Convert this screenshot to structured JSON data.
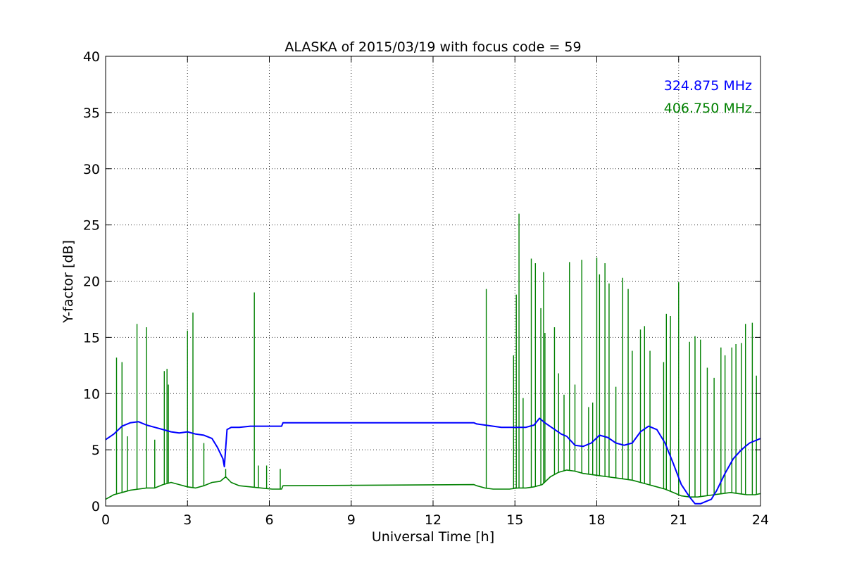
{
  "chart_data": {
    "type": "line",
    "title": "ALASKA of 2015/03/19 with focus code = 59",
    "xlabel": "Universal Time [h]",
    "ylabel": "Y-factor [dB]",
    "xlim": [
      0,
      24
    ],
    "ylim": [
      0,
      40
    ],
    "x_ticks": [
      0,
      3,
      6,
      9,
      12,
      15,
      18,
      21,
      24
    ],
    "y_ticks": [
      0,
      5,
      10,
      15,
      20,
      25,
      30,
      35,
      40
    ],
    "grid": true,
    "legend_placement": "top-right",
    "series": [
      {
        "name": "324.875 MHz",
        "color": "#0000ff",
        "x": [
          0,
          0.3,
          0.6,
          0.9,
          1.2,
          1.5,
          1.8,
          2.1,
          2.4,
          2.7,
          3.0,
          3.3,
          3.6,
          3.9,
          4.1,
          4.3,
          4.35,
          4.45,
          4.6,
          4.9,
          5.3,
          5.7,
          6.1,
          6.45,
          6.5,
          13.5,
          13.6,
          13.9,
          14.2,
          14.5,
          14.8,
          15.1,
          15.4,
          15.7,
          15.9,
          16.1,
          16.4,
          16.7,
          16.9,
          17.2,
          17.5,
          17.8,
          18.1,
          18.4,
          18.7,
          19.0,
          19.3,
          19.6,
          19.9,
          20.2,
          20.5,
          20.8,
          21.1,
          21.4,
          21.6,
          21.8,
          22.0,
          22.2,
          22.4,
          22.7,
          23.0,
          23.3,
          23.6,
          24.0
        ],
        "values": [
          5.9,
          6.4,
          7.1,
          7.4,
          7.5,
          7.2,
          7.0,
          6.8,
          6.6,
          6.5,
          6.6,
          6.4,
          6.3,
          6.0,
          5.2,
          4.2,
          3.5,
          6.8,
          7.0,
          7.0,
          7.1,
          7.1,
          7.1,
          7.1,
          7.4,
          7.4,
          7.3,
          7.2,
          7.1,
          7.0,
          7.0,
          7.0,
          7.0,
          7.2,
          7.8,
          7.4,
          6.9,
          6.4,
          6.2,
          5.4,
          5.3,
          5.6,
          6.3,
          6.1,
          5.6,
          5.4,
          5.6,
          6.6,
          7.1,
          6.8,
          5.6,
          3.8,
          1.9,
          0.8,
          0.2,
          0.2,
          0.4,
          0.6,
          1.4,
          2.9,
          4.2,
          5.0,
          5.6,
          6.0
        ]
      },
      {
        "name": "406.750 MHz",
        "color": "#008000",
        "x": [
          0,
          0.3,
          0.6,
          0.9,
          1.2,
          1.5,
          1.8,
          2.1,
          2.4,
          2.7,
          3.0,
          3.3,
          3.6,
          3.9,
          4.2,
          4.4,
          4.6,
          4.9,
          5.3,
          5.7,
          6.1,
          6.45,
          6.5,
          13.5,
          13.6,
          13.9,
          14.2,
          14.5,
          14.8,
          15.1,
          15.4,
          15.7,
          16.0,
          16.3,
          16.6,
          16.9,
          17.2,
          17.5,
          17.8,
          18.1,
          18.4,
          18.7,
          19.0,
          19.3,
          19.6,
          19.9,
          20.2,
          20.5,
          20.8,
          21.1,
          21.4,
          21.7,
          22.0,
          22.3,
          22.6,
          22.9,
          23.2,
          23.5,
          23.8,
          24.0
        ],
        "values": [
          0.6,
          1.0,
          1.2,
          1.4,
          1.5,
          1.6,
          1.6,
          1.9,
          2.1,
          1.9,
          1.7,
          1.6,
          1.8,
          2.1,
          2.2,
          2.6,
          2.1,
          1.8,
          1.7,
          1.6,
          1.5,
          1.5,
          1.8,
          1.9,
          1.8,
          1.6,
          1.5,
          1.5,
          1.5,
          1.6,
          1.6,
          1.7,
          1.9,
          2.6,
          3.0,
          3.2,
          3.1,
          2.9,
          2.8,
          2.7,
          2.6,
          2.5,
          2.4,
          2.3,
          2.1,
          1.9,
          1.7,
          1.5,
          1.2,
          0.9,
          0.8,
          0.8,
          0.9,
          1.0,
          1.1,
          1.2,
          1.1,
          1.0,
          1.0,
          1.1
        ],
        "spikes": [
          {
            "x": 0.4,
            "y": 13.2
          },
          {
            "x": 0.6,
            "y": 12.8
          },
          {
            "x": 0.8,
            "y": 6.2
          },
          {
            "x": 1.15,
            "y": 16.2
          },
          {
            "x": 1.5,
            "y": 15.9
          },
          {
            "x": 1.8,
            "y": 5.9
          },
          {
            "x": 2.15,
            "y": 12.0
          },
          {
            "x": 2.25,
            "y": 12.2
          },
          {
            "x": 2.3,
            "y": 10.8
          },
          {
            "x": 3.0,
            "y": 15.6
          },
          {
            "x": 3.2,
            "y": 17.2
          },
          {
            "x": 3.6,
            "y": 5.6
          },
          {
            "x": 4.4,
            "y": 3.3
          },
          {
            "x": 5.45,
            "y": 19.0
          },
          {
            "x": 5.6,
            "y": 3.6
          },
          {
            "x": 5.9,
            "y": 3.6
          },
          {
            "x": 6.4,
            "y": 3.3
          },
          {
            "x": 13.95,
            "y": 19.3
          },
          {
            "x": 14.95,
            "y": 13.4
          },
          {
            "x": 15.05,
            "y": 18.8
          },
          {
            "x": 15.15,
            "y": 26.0
          },
          {
            "x": 15.3,
            "y": 9.6
          },
          {
            "x": 15.6,
            "y": 22.0
          },
          {
            "x": 15.75,
            "y": 21.6
          },
          {
            "x": 15.95,
            "y": 17.6
          },
          {
            "x": 16.05,
            "y": 20.8
          },
          {
            "x": 16.1,
            "y": 15.4
          },
          {
            "x": 16.45,
            "y": 15.9
          },
          {
            "x": 16.6,
            "y": 11.8
          },
          {
            "x": 16.8,
            "y": 9.9
          },
          {
            "x": 17.0,
            "y": 21.7
          },
          {
            "x": 17.2,
            "y": 10.8
          },
          {
            "x": 17.45,
            "y": 21.9
          },
          {
            "x": 17.7,
            "y": 8.8
          },
          {
            "x": 17.85,
            "y": 9.2
          },
          {
            "x": 18.0,
            "y": 22.1
          },
          {
            "x": 18.1,
            "y": 20.6
          },
          {
            "x": 18.3,
            "y": 21.6
          },
          {
            "x": 18.45,
            "y": 19.8
          },
          {
            "x": 18.7,
            "y": 10.6
          },
          {
            "x": 18.95,
            "y": 20.3
          },
          {
            "x": 19.15,
            "y": 19.3
          },
          {
            "x": 19.3,
            "y": 13.8
          },
          {
            "x": 19.6,
            "y": 15.7
          },
          {
            "x": 19.75,
            "y": 16.0
          },
          {
            "x": 19.95,
            "y": 13.8
          },
          {
            "x": 20.45,
            "y": 12.8
          },
          {
            "x": 20.55,
            "y": 17.1
          },
          {
            "x": 20.7,
            "y": 16.9
          },
          {
            "x": 21.0,
            "y": 19.9
          },
          {
            "x": 21.4,
            "y": 14.6
          },
          {
            "x": 21.6,
            "y": 15.1
          },
          {
            "x": 21.8,
            "y": 14.8
          },
          {
            "x": 22.05,
            "y": 12.3
          },
          {
            "x": 22.3,
            "y": 11.4
          },
          {
            "x": 22.55,
            "y": 14.1
          },
          {
            "x": 22.7,
            "y": 13.4
          },
          {
            "x": 22.95,
            "y": 14.1
          },
          {
            "x": 23.1,
            "y": 14.4
          },
          {
            "x": 23.3,
            "y": 14.5
          },
          {
            "x": 23.45,
            "y": 16.2
          },
          {
            "x": 23.7,
            "y": 16.3
          },
          {
            "x": 23.85,
            "y": 11.6
          }
        ]
      }
    ]
  }
}
